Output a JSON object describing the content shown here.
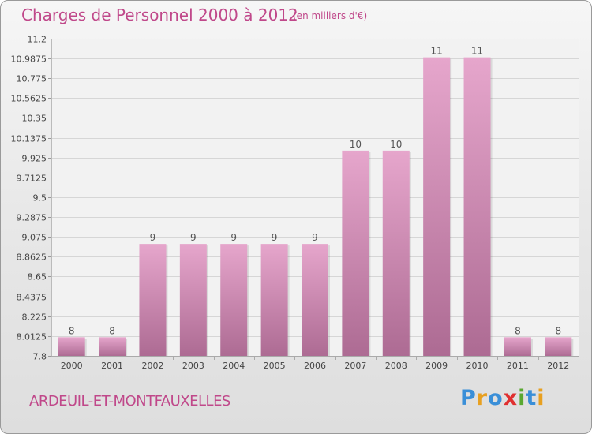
{
  "header": {
    "title": "Charges de Personnel 2000 à 2012",
    "subtitle": "(en milliers d'€)"
  },
  "footer": {
    "commune": "ARDEUIL-ET-MONTFAUXELLES",
    "brand": "Proxiti"
  },
  "colors": {
    "title": "#c0488a",
    "bar_top": "#e6a6cc",
    "bar_bottom": "#ad6b93",
    "brand_letters": [
      "#3a8fd8",
      "#e8a020",
      "#3a8fd8",
      "#e03030",
      "#5aa830",
      "#3a8fd8",
      "#e8a020"
    ]
  },
  "chart_data": {
    "type": "bar",
    "title": "Charges de Personnel 2000 à 2012",
    "subtitle": "(en milliers d'€)",
    "xlabel": "",
    "ylabel": "",
    "categories": [
      "2000",
      "2001",
      "2002",
      "2003",
      "2004",
      "2005",
      "2006",
      "2007",
      "2008",
      "2009",
      "2010",
      "2011",
      "2012"
    ],
    "values": [
      8,
      8,
      9,
      9,
      9,
      9,
      9,
      10,
      10,
      11,
      11,
      8,
      8
    ],
    "value_labels": [
      "8",
      "8",
      "9",
      "9",
      "9",
      "9",
      "9",
      "10",
      "10",
      "11",
      "11",
      "8",
      "8"
    ],
    "ylim": [
      7.8,
      11.2
    ],
    "yticks": [
      7.8,
      8.0125,
      8.225,
      8.4375,
      8.65,
      8.8625,
      9.075,
      9.2875,
      9.5,
      9.7125,
      9.925,
      10.1375,
      10.35,
      10.5625,
      10.775,
      10.9875,
      11.2
    ],
    "ytick_labels": [
      "7.8",
      "8.0125",
      "8.225",
      "8.4375",
      "8.65",
      "8.8625",
      "9.075",
      "9.2875",
      "9.5",
      "9.7125",
      "9.925",
      "10.1375",
      "10.35",
      "10.5625",
      "10.775",
      "10.9875",
      "11.2"
    ],
    "grid": true,
    "legend": "none"
  }
}
